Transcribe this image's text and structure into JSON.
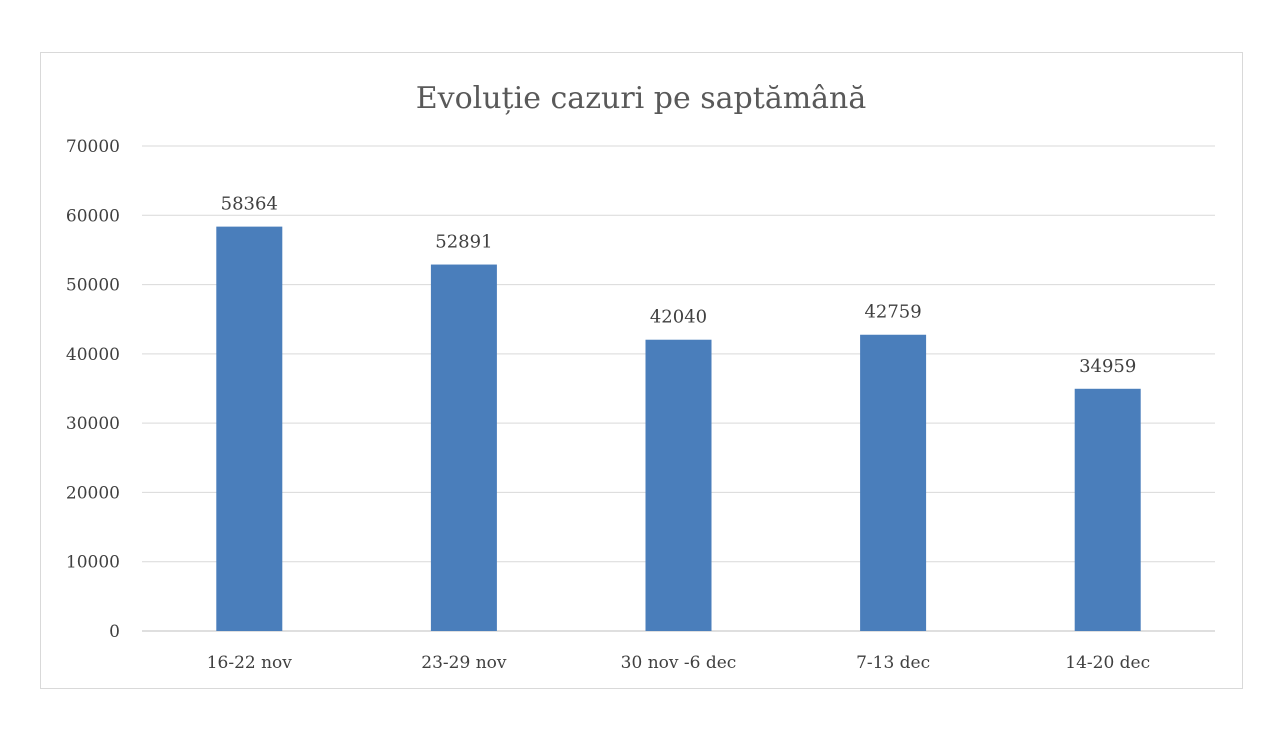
{
  "chart_data": {
    "type": "bar",
    "title": "Evoluție cazuri pe saptămână",
    "xlabel": "",
    "ylabel": "",
    "categories": [
      "16-22 nov",
      "23-29 nov",
      "30 nov -6 dec",
      "7-13 dec",
      "14-20 dec"
    ],
    "values": [
      58364,
      52891,
      42040,
      42759,
      34959
    ],
    "ylim": [
      0,
      70000
    ],
    "yticks": [
      0,
      10000,
      20000,
      30000,
      40000,
      50000,
      60000,
      70000
    ],
    "grid": true,
    "legend": "none",
    "bar_color": "#4a7ebb"
  }
}
